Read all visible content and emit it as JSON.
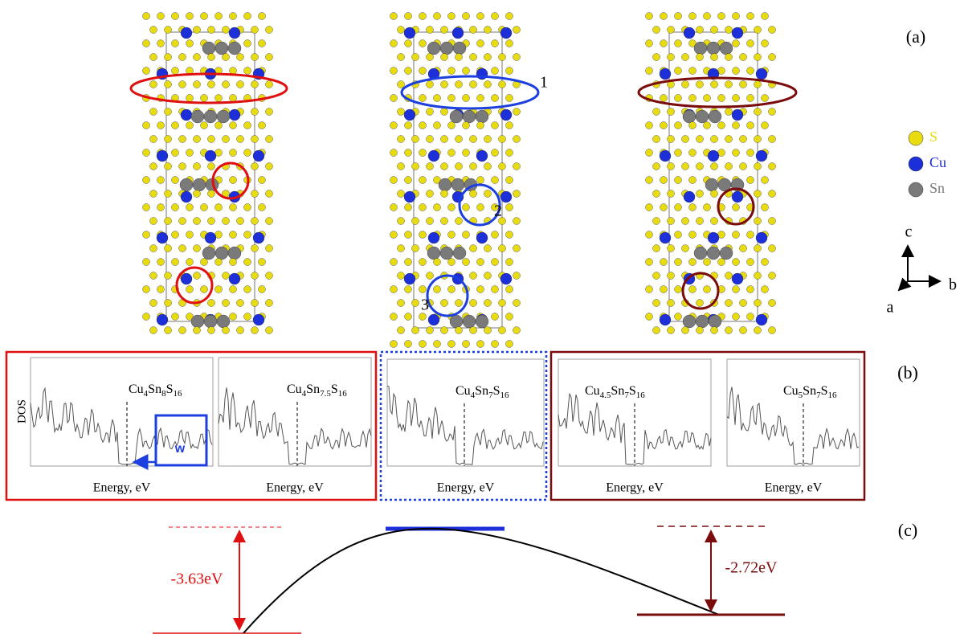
{
  "panel_labels": [
    "(a)",
    "(b)",
    "(c)"
  ],
  "legend": [
    {
      "symbol": "S",
      "color": "#e8dc10"
    },
    {
      "symbol": "Cu",
      "color": "#1c2fd8"
    },
    {
      "symbol": "Sn",
      "color": "#7a7a7a"
    }
  ],
  "axes": [
    "c",
    "b",
    "a"
  ],
  "site_labels": [
    "1",
    "2",
    "3"
  ],
  "dos": {
    "y_label": "DOS",
    "inset_label": "w",
    "plots": [
      {
        "formula": [
          {
            "element": "Cu",
            "count": "4"
          },
          {
            "element": "Sn",
            "count": "8"
          },
          {
            "element": "S",
            "count": "16"
          }
        ],
        "x_label": "Energy, eV"
      },
      {
        "formula": [
          {
            "element": "Cu",
            "count": "4"
          },
          {
            "element": "Sn",
            "count": "7.5"
          },
          {
            "element": "S",
            "count": "16"
          }
        ],
        "x_label": "Energy, eV"
      },
      {
        "formula": [
          {
            "element": "Cu",
            "count": "4"
          },
          {
            "element": "Sn",
            "count": "7"
          },
          {
            "element": "S",
            "count": "16"
          }
        ],
        "x_label": "Energy, eV"
      },
      {
        "formula": [
          {
            "element": "Cu",
            "count": "4.5"
          },
          {
            "element": "Sn",
            "count": "7"
          },
          {
            "element": "S",
            "count": "16"
          }
        ],
        "x_label": "Energy, eV"
      },
      {
        "formula": [
          {
            "element": "Cu",
            "count": "5"
          },
          {
            "element": "Sn",
            "count": "7"
          },
          {
            "element": "S",
            "count": "16"
          }
        ],
        "x_label": "Energy, eV"
      }
    ]
  },
  "energies": [
    "-3.63eV",
    "-2.72eV"
  ]
}
